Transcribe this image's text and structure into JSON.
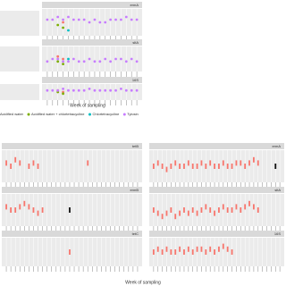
{
  "chart_data": [
    {
      "type": "scatter",
      "title": "ermA",
      "xlim": [
        0,
        19
      ],
      "ylim": [
        0,
        10
      ],
      "x": [
        1,
        2,
        3,
        4,
        5,
        6,
        7,
        8,
        9,
        10,
        11,
        12,
        13,
        14,
        15,
        16,
        17,
        18
      ],
      "series": [
        {
          "name": "Acidified water",
          "color": "#f8766d",
          "values": [
            null,
            null,
            null,
            5,
            null,
            null,
            null,
            null,
            null,
            null,
            null,
            null,
            null,
            null,
            null,
            null,
            null,
            null
          ]
        },
        {
          "name": "Acidified water + chlortetracycline",
          "color": "#7cae00",
          "values": [
            null,
            null,
            4,
            3,
            null,
            null,
            null,
            null,
            null,
            null,
            null,
            null,
            null,
            null,
            null,
            null,
            null,
            null
          ]
        },
        {
          "name": "Chlortetracycline",
          "color": "#00bfc4",
          "values": [
            null,
            null,
            null,
            null,
            2,
            null,
            null,
            null,
            null,
            null,
            null,
            null,
            null,
            null,
            null,
            null,
            null,
            null
          ]
        },
        {
          "name": "Tylosin",
          "color": "#c77cff",
          "values": [
            6,
            6,
            7,
            6,
            7,
            6,
            6,
            6,
            5,
            6,
            5,
            5,
            6,
            6,
            6,
            7,
            6,
            6
          ]
        }
      ]
    },
    {
      "type": "scatter",
      "title": "sltA",
      "xlim": [
        0,
        19
      ],
      "ylim": [
        0,
        10
      ],
      "x": [
        1,
        2,
        3,
        4,
        5,
        6,
        7,
        8,
        9,
        10,
        11,
        12,
        13,
        14,
        15,
        16,
        17,
        18
      ],
      "series": [
        {
          "color": "#f8766d",
          "values": [
            null,
            null,
            6,
            5,
            null,
            null,
            null,
            null,
            null,
            null,
            null,
            null,
            null,
            null,
            null,
            null,
            null,
            null
          ]
        },
        {
          "color": "#7cae00",
          "values": [
            null,
            null,
            4,
            3,
            null,
            null,
            null,
            null,
            null,
            null,
            null,
            null,
            null,
            null,
            null,
            null,
            null,
            null
          ]
        },
        {
          "color": "#00bfc4",
          "values": [
            null,
            null,
            null,
            null,
            5,
            null,
            null,
            null,
            null,
            null,
            null,
            null,
            null,
            null,
            null,
            null,
            null,
            null
          ]
        },
        {
          "color": "#c77cff",
          "values": [
            4,
            5,
            5,
            4,
            4,
            5,
            4,
            4,
            5,
            4,
            4,
            5,
            4,
            5,
            5,
            4,
            5,
            4
          ]
        }
      ]
    },
    {
      "type": "scatter",
      "title": "16S",
      "xlim": [
        0,
        19
      ],
      "ylim": [
        0,
        10
      ],
      "x": [
        1,
        2,
        3,
        4,
        5,
        6,
        7,
        8,
        9,
        10,
        11,
        12,
        13,
        14,
        15,
        16,
        17,
        18
      ],
      "series": [
        {
          "color": "#f8766d",
          "values": [
            null,
            null,
            6,
            5,
            null,
            null,
            null,
            null,
            null,
            null,
            null,
            null,
            null,
            null,
            null,
            null,
            null,
            null
          ]
        },
        {
          "color": "#7cae00",
          "values": [
            null,
            null,
            5,
            4,
            null,
            null,
            null,
            null,
            null,
            null,
            null,
            null,
            null,
            null,
            null,
            null,
            null,
            null
          ]
        },
        {
          "color": "#c77cff",
          "values": [
            6,
            6,
            6,
            7,
            6,
            6,
            6,
            6,
            7,
            6,
            6,
            6,
            6,
            6,
            7,
            6,
            6,
            6
          ]
        }
      ]
    },
    {
      "type": "range",
      "title": "tetB",
      "xlim": [
        0,
        31
      ],
      "ylim": [
        0,
        10
      ],
      "x": [
        1,
        2,
        3,
        4,
        5,
        6,
        7,
        8,
        9,
        10,
        11,
        12,
        13,
        14,
        15,
        16,
        17,
        18,
        19,
        20,
        21,
        22,
        23,
        24,
        25,
        26,
        27,
        28,
        29,
        30
      ],
      "series": [
        {
          "color": "#f8766d",
          "values": [
            6,
            5,
            7,
            6,
            null,
            5,
            6,
            5,
            null,
            null,
            null,
            null,
            null,
            null,
            null,
            null,
            null,
            null,
            6,
            null,
            null,
            null,
            null,
            null,
            null,
            null,
            null,
            null,
            null,
            null
          ]
        }
      ]
    },
    {
      "type": "range",
      "title": "ermA",
      "xlim": [
        0,
        31
      ],
      "ylim": [
        0,
        10
      ],
      "x": [
        1,
        2,
        3,
        4,
        5,
        6,
        7,
        8,
        9,
        10,
        11,
        12,
        13,
        14,
        15,
        16,
        17,
        18,
        19,
        20,
        21,
        22,
        23,
        24,
        25,
        26,
        27,
        28,
        29,
        30
      ],
      "series": [
        {
          "color": "#f8766d",
          "values": [
            5,
            6,
            5,
            4,
            5,
            6,
            5,
            5,
            6,
            5,
            5,
            6,
            5,
            6,
            5,
            5,
            6,
            5,
            5,
            6,
            6,
            5,
            6,
            7,
            6,
            null,
            null,
            null,
            null,
            null
          ]
        },
        {
          "color": "#111111",
          "values": [
            null,
            null,
            null,
            null,
            null,
            null,
            null,
            null,
            null,
            null,
            null,
            null,
            null,
            null,
            null,
            null,
            null,
            null,
            null,
            null,
            null,
            null,
            null,
            null,
            null,
            null,
            null,
            null,
            5,
            null
          ]
        }
      ]
    },
    {
      "type": "range",
      "title": "ermB",
      "xlim": [
        0,
        31
      ],
      "ylim": [
        0,
        10
      ],
      "x": [
        1,
        2,
        3,
        4,
        5,
        6,
        7,
        8,
        9,
        10,
        11,
        12,
        13,
        14,
        15,
        16,
        17,
        18,
        19,
        20,
        21,
        22,
        23,
        24,
        25,
        26,
        27,
        28,
        29,
        30
      ],
      "series": [
        {
          "color": "#f8766d",
          "values": [
            6,
            5,
            5,
            6,
            7,
            6,
            5,
            4,
            5,
            null,
            null,
            null,
            null,
            null,
            null,
            null,
            null,
            null,
            null,
            null,
            null,
            null,
            null,
            null,
            null,
            null,
            null,
            null,
            null,
            null
          ]
        },
        {
          "color": "#111111",
          "values": [
            null,
            null,
            null,
            null,
            null,
            null,
            null,
            null,
            null,
            null,
            null,
            null,
            null,
            null,
            5,
            null,
            null,
            null,
            null,
            null,
            null,
            null,
            null,
            null,
            null,
            null,
            null,
            null,
            null,
            null
          ]
        }
      ]
    },
    {
      "type": "range",
      "title": "sltA",
      "xlim": [
        0,
        31
      ],
      "ylim": [
        0,
        10
      ],
      "x": [
        1,
        2,
        3,
        4,
        5,
        6,
        7,
        8,
        9,
        10,
        11,
        12,
        13,
        14,
        15,
        16,
        17,
        18,
        19,
        20,
        21,
        22,
        23,
        24,
        25,
        26,
        27,
        28,
        29,
        30
      ],
      "series": [
        {
          "color": "#f8766d",
          "values": [
            5,
            4,
            3,
            4,
            5,
            3,
            4,
            5,
            4,
            5,
            4,
            5,
            6,
            5,
            4,
            5,
            6,
            5,
            5,
            6,
            5,
            6,
            7,
            6,
            5,
            null,
            null,
            null,
            null,
            null
          ]
        },
        {
          "color": "#111111",
          "values": [
            null,
            null,
            null,
            null,
            null,
            null,
            null,
            null,
            null,
            null,
            null,
            null,
            null,
            null,
            null,
            null,
            null,
            null,
            null,
            null,
            null,
            null,
            null,
            null,
            null,
            null,
            null,
            null,
            null,
            null
          ]
        }
      ]
    },
    {
      "type": "range",
      "title": "tetC",
      "xlim": [
        0,
        31
      ],
      "ylim": [
        0,
        10
      ],
      "x": [
        1,
        2,
        3,
        4,
        5,
        6,
        7,
        8,
        9,
        10,
        11,
        12,
        13,
        14,
        15,
        16,
        17,
        18,
        19,
        20,
        21,
        22,
        23,
        24,
        25,
        26,
        27,
        28,
        29,
        30
      ],
      "series": [
        {
          "color": "#f8766d",
          "values": [
            null,
            null,
            null,
            null,
            null,
            null,
            null,
            null,
            null,
            null,
            null,
            null,
            null,
            null,
            5,
            null,
            null,
            null,
            null,
            null,
            null,
            null,
            null,
            null,
            null,
            null,
            null,
            null,
            null,
            null
          ]
        }
      ]
    },
    {
      "type": "range",
      "title": "16S",
      "xlim": [
        0,
        31
      ],
      "ylim": [
        0,
        10
      ],
      "x": [
        1,
        2,
        3,
        4,
        5,
        6,
        7,
        8,
        9,
        10,
        11,
        12,
        13,
        14,
        15,
        16,
        17,
        18,
        19,
        20,
        21,
        22,
        23,
        24,
        25,
        26,
        27,
        28,
        29,
        30
      ],
      "series": [
        {
          "color": "#f8766d",
          "values": [
            5,
            6,
            5,
            6,
            5,
            5,
            6,
            5,
            6,
            5,
            6,
            6,
            5,
            6,
            5,
            6,
            7,
            6,
            5,
            null,
            null,
            null,
            null,
            null,
            null,
            null,
            null,
            null,
            null,
            null
          ]
        }
      ]
    }
  ],
  "x_label": "Week of sampling"
}
